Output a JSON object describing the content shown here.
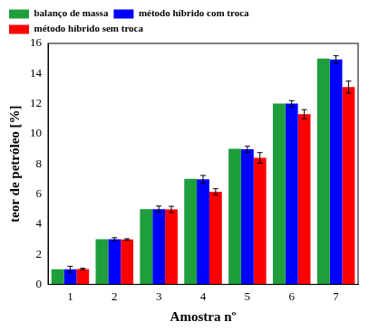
{
  "chart_data": {
    "type": "bar",
    "x_label": "Amostra nº",
    "y_label": "teor de petróleo [%]",
    "categories": [
      "1",
      "2",
      "3",
      "4",
      "5",
      "6",
      "7"
    ],
    "series": [
      {
        "name": "balanço de massa",
        "color": "#1f9e3c",
        "values": [
          1,
          3,
          5,
          7,
          9,
          12,
          15
        ]
      },
      {
        "name": "método híbrido com troca",
        "color": "#0000ff",
        "values": [
          1.0,
          3.0,
          5.0,
          6.98,
          8.97,
          12.0,
          14.93
        ],
        "errors": [
          0.2,
          0.1,
          0.2,
          0.25,
          0.2,
          0.2,
          0.25
        ]
      },
      {
        "name": "método híbrido sem troca",
        "color": "#ff0000",
        "values": [
          1.02,
          2.98,
          4.98,
          6.15,
          8.4,
          11.3,
          13.1
        ],
        "errors": [
          0.05,
          0.05,
          0.2,
          0.2,
          0.35,
          0.3,
          0.4
        ]
      }
    ],
    "ylim": [
      0,
      16
    ],
    "yticks": [
      0,
      2,
      4,
      6,
      8,
      10,
      12,
      14,
      16
    ],
    "grid": false,
    "legend": "upper left"
  }
}
